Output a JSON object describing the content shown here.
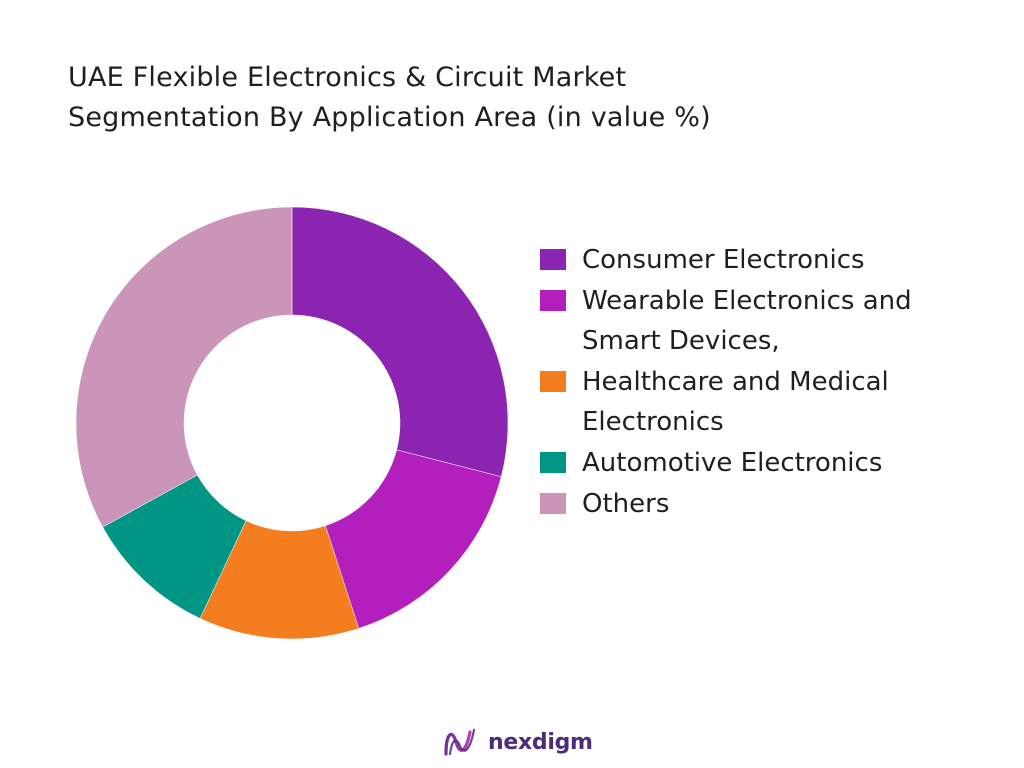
{
  "chart_data": {
    "type": "pie",
    "title_lines": [
      "UAE Flexible Electronics & Circuit Market",
      "Segmentation By Application Area (in value %)"
    ],
    "categories": [
      "Consumer Electronics",
      "Wearable Electronics and Smart Devices,",
      "Healthcare and Medical Electronics",
      "Automotive Electronics",
      "Others"
    ],
    "values": [
      29,
      16,
      12,
      10,
      33
    ],
    "colors": [
      "#8b24b0",
      "#b21fbd",
      "#f47d20",
      "#009683",
      "#cb94b9"
    ],
    "donut": true,
    "legend_position": "right"
  },
  "brand": {
    "name": "nexdigm",
    "color": "#4a2c7a"
  }
}
